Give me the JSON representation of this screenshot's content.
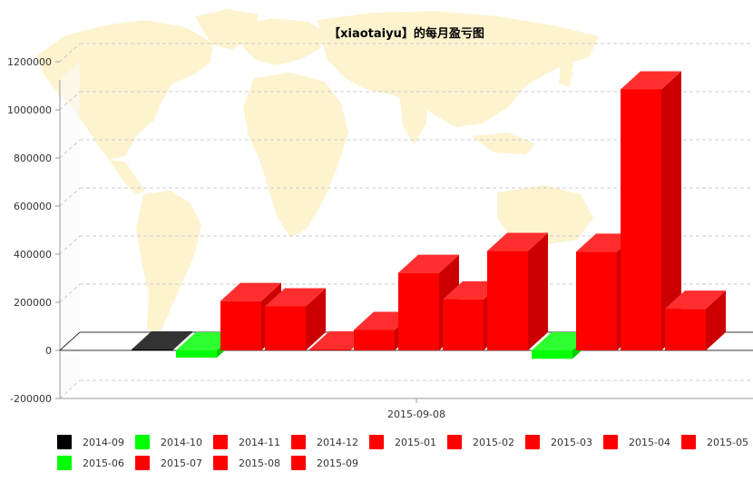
{
  "chart_data": {
    "type": "bar",
    "title": "【xiaotaiyu】的每月盈亏图",
    "xlabel": "",
    "ylabel": "",
    "x_tick_label": "2015-09-08",
    "ylim": [
      -200000,
      1200000
    ],
    "y_ticks": [
      -200000,
      0,
      200000,
      400000,
      600000,
      800000,
      1000000,
      1200000
    ],
    "y_tick_labels": [
      "-200000",
      "0",
      "200000",
      "400000",
      "600000",
      "800000",
      "1000000",
      "1200000"
    ],
    "grid": true,
    "legend_position": "bottom",
    "style": "3d-bars",
    "background_decoration": "world-map-pale-yellow",
    "series": [
      {
        "name": "2014-09",
        "value": 0,
        "color": "#000000"
      },
      {
        "name": "2014-10",
        "value": -30000,
        "color": "#00ff00"
      },
      {
        "name": "2014-11",
        "value": 205000,
        "color": "#ff0000"
      },
      {
        "name": "2014-12",
        "value": 183000,
        "color": "#ff0000"
      },
      {
        "name": "2015-01",
        "value": 0,
        "color": "#ff0000"
      },
      {
        "name": "2015-02",
        "value": 85000,
        "color": "#ff0000"
      },
      {
        "name": "2015-03",
        "value": 322000,
        "color": "#ff0000"
      },
      {
        "name": "2015-04",
        "value": 212000,
        "color": "#ff0000"
      },
      {
        "name": "2015-05",
        "value": 413000,
        "color": "#ff0000"
      },
      {
        "name": "2015-06",
        "value": -35000,
        "color": "#00ff00"
      },
      {
        "name": "2015-07",
        "value": 410000,
        "color": "#ff0000"
      },
      {
        "name": "2015-08",
        "value": 1085000,
        "color": "#ff0000"
      },
      {
        "name": "2015-09",
        "value": 173000,
        "color": "#ff0000"
      }
    ]
  }
}
